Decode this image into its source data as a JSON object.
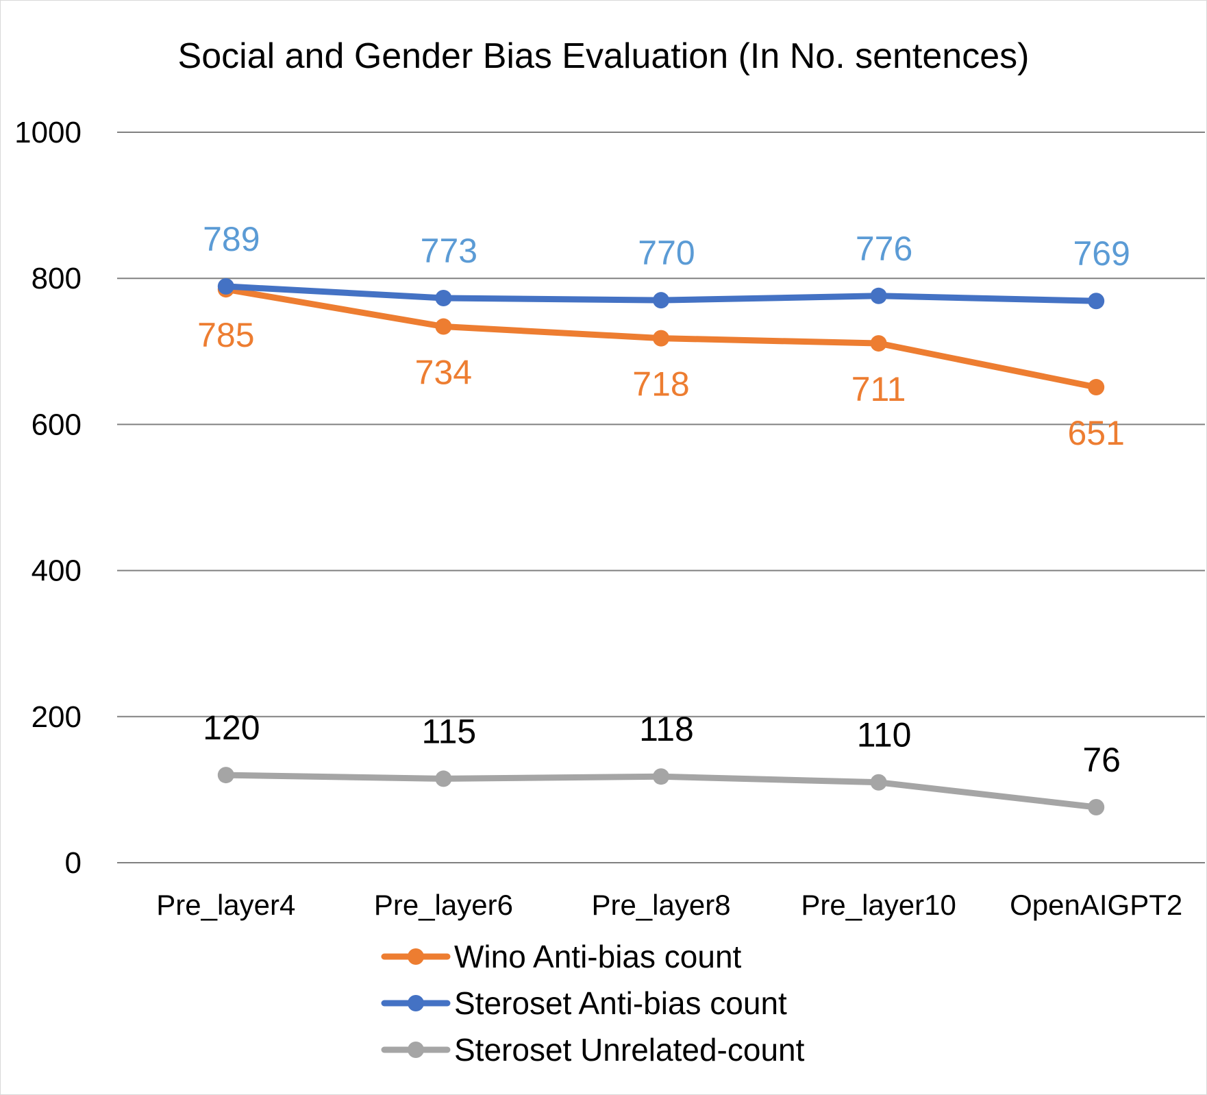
{
  "chart_data": {
    "type": "line",
    "title": "Social and Gender Bias Evaluation (In No. sentences)",
    "xlabel": "",
    "ylabel": "",
    "categories": [
      "Pre_layer4",
      "Pre_layer6",
      "Pre_layer8",
      "Pre_layer10",
      "OpenAIGPT2"
    ],
    "ylim": [
      0,
      1000
    ],
    "yticks": [
      0,
      200,
      400,
      600,
      800,
      1000
    ],
    "grid": true,
    "legend_position": "bottom",
    "series": [
      {
        "name": "Wino Anti-bias count",
        "color": "#ED7D31",
        "label_color": "#ED7D31",
        "label_position": "below",
        "values": [
          785,
          734,
          718,
          711,
          651
        ]
      },
      {
        "name": "Steroset Anti-bias count",
        "color": "#4472C4",
        "label_color": "#5B9BD5",
        "label_position": "above",
        "values": [
          789,
          773,
          770,
          776,
          769
        ]
      },
      {
        "name": "Steroset Unrelated-count",
        "color": "#A5A5A5",
        "label_color": "#000000",
        "label_position": "above",
        "values": [
          120,
          115,
          118,
          110,
          76
        ]
      }
    ]
  }
}
